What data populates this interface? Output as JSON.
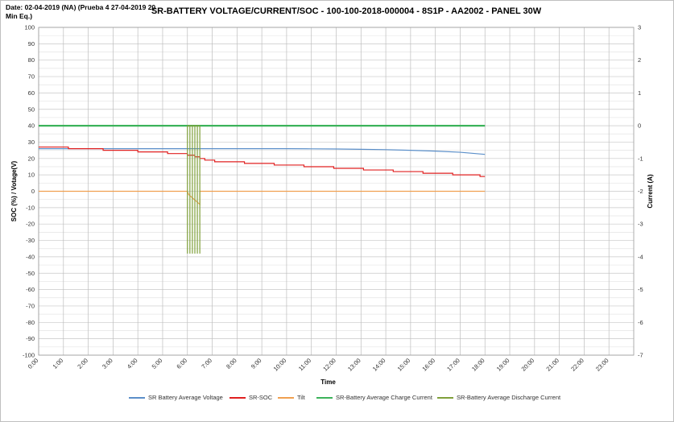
{
  "header": {
    "date_label": "Date: 02-04-2019 (NA) (Prueba 4 27-04-2019 20 Min Eq.)"
  },
  "chart_data": {
    "type": "line",
    "title": "SR-BATTERY VOLTAGE/CURRENT/SOC - 100-100-2018-000004 - 8S1P - AA2002 - PANEL 30W",
    "xlabel": "Time",
    "ylabel_left": "SOC (%) / Votage(V)",
    "ylabel_right": "Current (A)",
    "x_categories": [
      "0:00",
      "1:00",
      "2:00",
      "3:00",
      "4:00",
      "5:00",
      "6:00",
      "7:00",
      "8:00",
      "9:00",
      "10:00",
      "11:00",
      "12:00",
      "13:00",
      "14:00",
      "15:00",
      "16:00",
      "17:00",
      "18:00",
      "19:00",
      "20:00",
      "21:00",
      "22:00",
      "23:00"
    ],
    "xlim_hours": [
      0,
      24
    ],
    "ylim_left": [
      -100,
      100
    ],
    "yticks_left": [
      100,
      90,
      80,
      70,
      60,
      50,
      40,
      30,
      20,
      10,
      0,
      -10,
      -20,
      -30,
      -40,
      -50,
      -60,
      -70,
      -80,
      -90,
      -100
    ],
    "ylim_right": [
      -7,
      3
    ],
    "yticks_right": [
      3,
      2,
      1,
      0,
      -1,
      -2,
      -3,
      -4,
      -5,
      -6,
      -7
    ],
    "grid": true,
    "legend_position": "bottom",
    "series": [
      {
        "name": "SR Battery Average Voltage",
        "axis": "left",
        "color": "#5b8fc9",
        "points": [
          [
            0,
            26
          ],
          [
            1,
            26
          ],
          [
            2,
            26
          ],
          [
            3,
            26
          ],
          [
            4,
            26
          ],
          [
            5,
            26
          ],
          [
            6,
            26
          ],
          [
            7,
            26
          ],
          [
            8,
            26
          ],
          [
            9,
            26
          ],
          [
            10,
            26
          ],
          [
            11,
            25.9
          ],
          [
            12,
            25.8
          ],
          [
            13,
            25.6
          ],
          [
            14,
            25.4
          ],
          [
            15,
            25
          ],
          [
            16,
            24.5
          ],
          [
            17,
            23.8
          ],
          [
            18,
            22.5
          ]
        ]
      },
      {
        "name": "SR-SOC",
        "axis": "left",
        "color": "#e02020",
        "step": true,
        "points": [
          [
            0,
            27
          ],
          [
            1.2,
            26
          ],
          [
            2.6,
            25
          ],
          [
            4,
            24
          ],
          [
            5.2,
            23
          ],
          [
            6,
            22
          ],
          [
            6.3,
            21
          ],
          [
            6.5,
            20
          ],
          [
            6.7,
            19
          ],
          [
            7.1,
            18
          ],
          [
            8.3,
            17
          ],
          [
            9.5,
            16
          ],
          [
            10.7,
            15
          ],
          [
            11.9,
            14
          ],
          [
            13.1,
            13
          ],
          [
            14.3,
            12
          ],
          [
            15.5,
            11
          ],
          [
            16.7,
            10
          ],
          [
            17.8,
            9
          ],
          [
            18,
            9
          ]
        ]
      },
      {
        "name": "Tilt",
        "axis": "left",
        "color": "#f0a050",
        "points": [
          [
            0,
            0
          ],
          [
            6.0,
            0
          ],
          [
            6.05,
            -2
          ],
          [
            6.2,
            -4
          ],
          [
            6.35,
            -6
          ],
          [
            6.5,
            -8
          ],
          [
            6.5,
            0
          ],
          [
            18,
            0
          ]
        ]
      },
      {
        "name": "SR-Battery Average Charge Current",
        "axis": "right",
        "color": "#3cb35a",
        "points": [
          [
            0,
            0
          ],
          [
            18,
            0
          ]
        ]
      },
      {
        "name": "SR-Battery Average Discharge Current",
        "axis": "right",
        "color": "#7fa03a",
        "spikes_x": [
          6.0,
          6.1,
          6.2,
          6.3,
          6.4,
          6.5
        ],
        "spike_low": -3.9
      }
    ]
  }
}
